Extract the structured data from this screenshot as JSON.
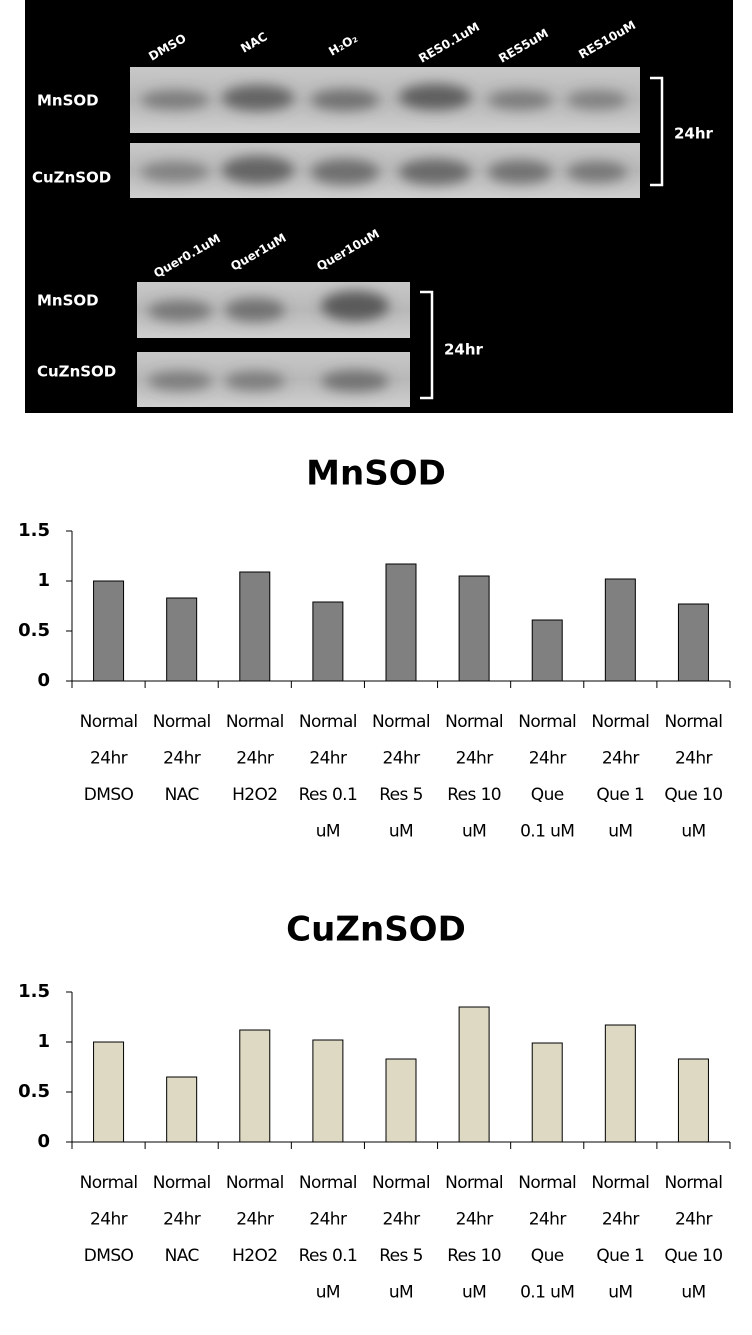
{
  "blot": {
    "top_lanes": [
      "DMSO",
      "NAC",
      "H₂O₂",
      "RES0.1uM",
      "RES5uM",
      "RES10uM"
    ],
    "top_rows": [
      "MnSOD",
      "CuZnSOD"
    ],
    "top_time": "24hr",
    "bottom_lanes": [
      "Quer0.1uM",
      "Quer1uM",
      "Quer10uM"
    ],
    "bottom_rows": [
      "MnSOD",
      "CuZnSOD"
    ],
    "bottom_time": "24hr"
  },
  "chart_data": [
    {
      "type": "bar",
      "title": "MnSOD",
      "color": "#808080",
      "categories": [
        [
          "Normal",
          "24hr",
          "DMSO"
        ],
        [
          "Normal",
          "24hr",
          "NAC"
        ],
        [
          "Normal",
          "24hr",
          "H2O2"
        ],
        [
          "Normal",
          "24hr",
          "Res 0.1",
          "uM"
        ],
        [
          "Normal",
          "24hr",
          "Res 5",
          "uM"
        ],
        [
          "Normal",
          "24hr",
          "Res 10",
          "uM"
        ],
        [
          "Normal",
          "24hr",
          "Que",
          "0.1 uM"
        ],
        [
          "Normal",
          "24hr",
          "Que 1",
          "uM"
        ],
        [
          "Normal",
          "24hr",
          "Que 10",
          "uM"
        ]
      ],
      "values": [
        1.0,
        0.83,
        1.09,
        0.79,
        1.17,
        1.05,
        0.61,
        1.02,
        0.77
      ],
      "ylim": [
        0,
        1.5
      ],
      "yticks": [
        0,
        0.5,
        1,
        1.5
      ]
    },
    {
      "type": "bar",
      "title": "CuZnSOD",
      "color": "#ddd9c3",
      "categories": [
        [
          "Normal",
          "24hr",
          "DMSO"
        ],
        [
          "Normal",
          "24hr",
          "NAC"
        ],
        [
          "Normal",
          "24hr",
          "H2O2"
        ],
        [
          "Normal",
          "24hr",
          "Res 0.1",
          "uM"
        ],
        [
          "Normal",
          "24hr",
          "Res 5",
          "uM"
        ],
        [
          "Normal",
          "24hr",
          "Res 10",
          "uM"
        ],
        [
          "Normal",
          "24hr",
          "Que",
          "0.1 uM"
        ],
        [
          "Normal",
          "24hr",
          "Que 1",
          "uM"
        ],
        [
          "Normal",
          "24hr",
          "Que 10",
          "uM"
        ]
      ],
      "values": [
        1.0,
        0.65,
        1.12,
        1.02,
        0.83,
        1.35,
        0.99,
        1.17,
        0.83
      ],
      "ylim": [
        0,
        1.5
      ],
      "yticks": [
        0,
        0.5,
        1,
        1.5
      ]
    }
  ]
}
